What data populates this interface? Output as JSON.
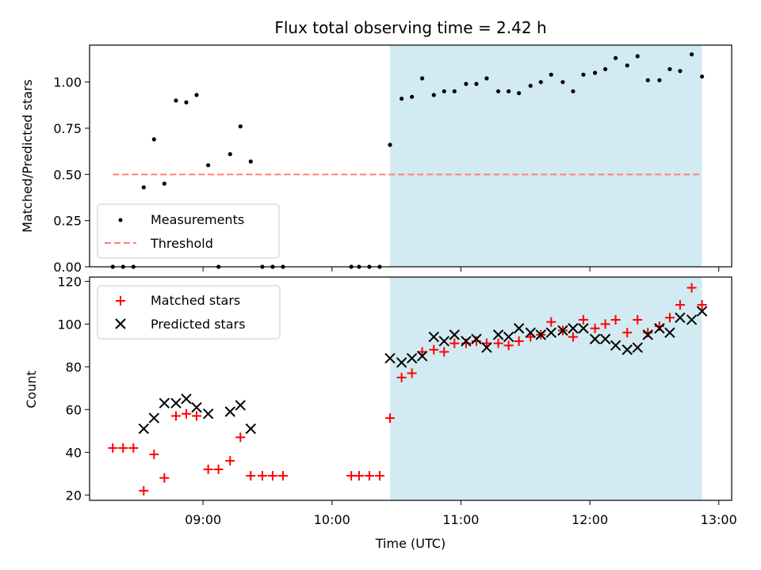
{
  "title": "Flux total observing time = 2.42 h",
  "colors": {
    "measurement": "#000000",
    "threshold": "#ff7f7f",
    "matched": "#ff0000",
    "predicted": "#000000",
    "shade": "#add8e6"
  },
  "chart_data": [
    {
      "type": "scatter",
      "ylabel": "Matched/Predicted stars",
      "xlim": [
        8.12,
        13.1
      ],
      "ylim": [
        0.0,
        1.2
      ],
      "yticks": [
        0.0,
        0.25,
        0.5,
        0.75,
        1.0
      ],
      "ytick_labels": [
        "0.00",
        "0.25",
        "0.50",
        "0.75",
        "1.00"
      ],
      "grid": false,
      "legend_loc": "lower left",
      "shaded_span": [
        10.45,
        12.87
      ],
      "series": [
        {
          "name": "Measurements",
          "kind": "scatter",
          "marker": "dot",
          "x": [
            8.3,
            8.38,
            8.46,
            8.54,
            8.62,
            8.7,
            8.79,
            8.87,
            8.95,
            9.04,
            9.12,
            9.21,
            9.29,
            9.37,
            9.46,
            9.54,
            9.62,
            10.15,
            10.21,
            10.29,
            10.37,
            10.45,
            10.54,
            10.62,
            10.7,
            10.79,
            10.87,
            10.95,
            11.04,
            11.12,
            11.2,
            11.29,
            11.37,
            11.45,
            11.54,
            11.62,
            11.7,
            11.79,
            11.87,
            11.95,
            12.04,
            12.12,
            12.2,
            12.29,
            12.37,
            12.45,
            12.54,
            12.62,
            12.7,
            12.79,
            12.87
          ],
          "y": [
            0.0,
            0.0,
            0.0,
            0.43,
            0.69,
            0.45,
            0.9,
            0.89,
            0.93,
            0.55,
            0.0,
            0.61,
            0.76,
            0.57,
            0.0,
            0.0,
            0.0,
            0.0,
            0.0,
            0.0,
            0.0,
            0.66,
            0.91,
            0.92,
            1.02,
            0.93,
            0.95,
            0.95,
            0.99,
            0.99,
            1.02,
            0.95,
            0.95,
            0.94,
            0.98,
            1.0,
            1.04,
            1.0,
            0.95,
            1.04,
            1.05,
            1.07,
            1.13,
            1.09,
            1.14,
            1.01,
            1.01,
            1.07,
            1.06,
            1.15,
            1.03
          ]
        },
        {
          "name": "Threshold",
          "kind": "dashed-line",
          "x": [
            8.3,
            12.87
          ],
          "y": [
            0.5,
            0.5
          ]
        }
      ]
    },
    {
      "type": "scatter",
      "xlabel": "Time (UTC)",
      "ylabel": "Count",
      "xlim": [
        8.12,
        13.1
      ],
      "ylim": [
        17.5,
        122
      ],
      "yticks": [
        20,
        40,
        60,
        80,
        100,
        120
      ],
      "ytick_labels": [
        "20",
        "40",
        "60",
        "80",
        "100",
        "120"
      ],
      "xticks": [
        9,
        10,
        11,
        12,
        13
      ],
      "xtick_labels": [
        "09:00",
        "10:00",
        "11:00",
        "12:00",
        "13:00"
      ],
      "grid": false,
      "legend_loc": "upper left",
      "shaded_span": [
        10.45,
        12.87
      ],
      "series": [
        {
          "name": "Matched stars",
          "kind": "scatter",
          "marker": "plus",
          "x": [
            8.3,
            8.38,
            8.46,
            8.54,
            8.62,
            8.7,
            8.79,
            8.87,
            8.95,
            9.04,
            9.12,
            9.21,
            9.29,
            9.37,
            9.46,
            9.54,
            9.62,
            10.15,
            10.21,
            10.29,
            10.37,
            10.45,
            10.54,
            10.62,
            10.7,
            10.79,
            10.87,
            10.95,
            11.04,
            11.12,
            11.2,
            11.29,
            11.37,
            11.45,
            11.54,
            11.62,
            11.7,
            11.79,
            11.87,
            11.95,
            12.04,
            12.12,
            12.2,
            12.29,
            12.37,
            12.45,
            12.54,
            12.62,
            12.7,
            12.79,
            12.87
          ],
          "y": [
            42,
            42,
            42,
            22,
            39,
            28,
            57,
            58,
            57,
            32,
            32,
            36,
            47,
            29,
            29,
            29,
            29,
            29,
            29,
            29,
            29,
            56,
            75,
            77,
            87,
            88,
            87,
            91,
            91,
            92,
            91,
            91,
            90,
            92,
            94,
            95,
            101,
            97,
            94,
            102,
            98,
            100,
            102,
            96,
            102,
            96,
            99,
            103,
            109,
            117,
            109
          ]
        },
        {
          "name": "Predicted stars",
          "kind": "scatter",
          "marker": "x",
          "x": [
            8.54,
            8.62,
            8.7,
            8.79,
            8.87,
            8.95,
            9.04,
            9.21,
            9.29,
            9.37,
            10.45,
            10.54,
            10.62,
            10.7,
            10.79,
            10.87,
            10.95,
            11.04,
            11.12,
            11.2,
            11.29,
            11.37,
            11.45,
            11.54,
            11.62,
            11.7,
            11.79,
            11.87,
            11.95,
            12.04,
            12.12,
            12.2,
            12.29,
            12.37,
            12.45,
            12.54,
            12.62,
            12.7,
            12.79,
            12.87
          ],
          "y": [
            51,
            56,
            63,
            63,
            65,
            61,
            58,
            59,
            62,
            51,
            84,
            82,
            84,
            85,
            94,
            92,
            95,
            92,
            93,
            89,
            95,
            94,
            98,
            96,
            95,
            96,
            97,
            98,
            98,
            93,
            93,
            90,
            88,
            89,
            95,
            98,
            96,
            103,
            102,
            106
          ]
        }
      ]
    }
  ]
}
